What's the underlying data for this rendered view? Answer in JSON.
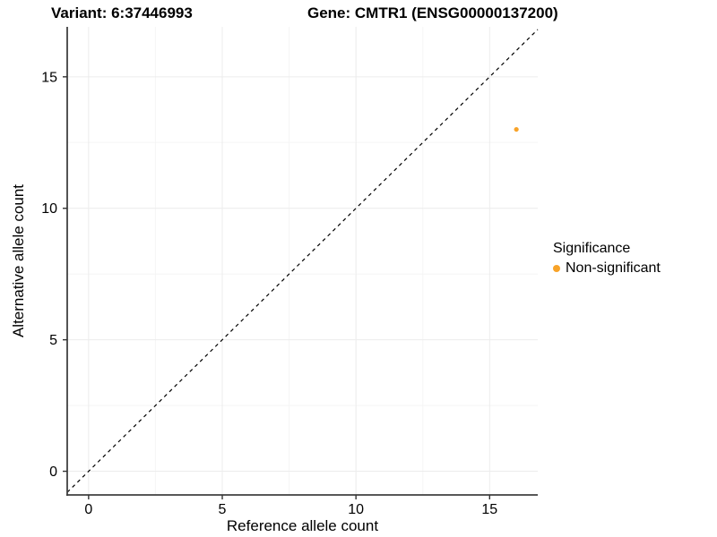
{
  "chart_data": {
    "type": "scatter",
    "titles": [
      "Variant: 6:37446993",
      "Gene: CMTR1 (ENSG00000137200)"
    ],
    "xlabel": "Reference allele count",
    "ylabel": "Alternative allele count",
    "xlim": [
      -0.8,
      16.8
    ],
    "ylim": [
      -0.9,
      16.9
    ],
    "xticks": [
      0,
      5,
      10,
      15
    ],
    "yticks": [
      0,
      5,
      10,
      15
    ],
    "grid": "major+minor",
    "points": [
      {
        "x": 16,
        "y": 13,
        "series": "Non-significant"
      }
    ],
    "reference_line": {
      "type": "identity",
      "slope": 1,
      "intercept": 0,
      "style": "dashed"
    },
    "legend": {
      "title": "Significance",
      "position": "right",
      "entries": [
        {
          "label": "Non-significant",
          "color": "#F8A329"
        }
      ]
    },
    "colors": {
      "point": "#F8A329",
      "grid_major": "#ECECEC",
      "grid_minor": "#F5F5F5",
      "axis_line": "#404040",
      "tick_mark": "#333333",
      "text": "#000000",
      "dashed_line": "#000000"
    }
  }
}
